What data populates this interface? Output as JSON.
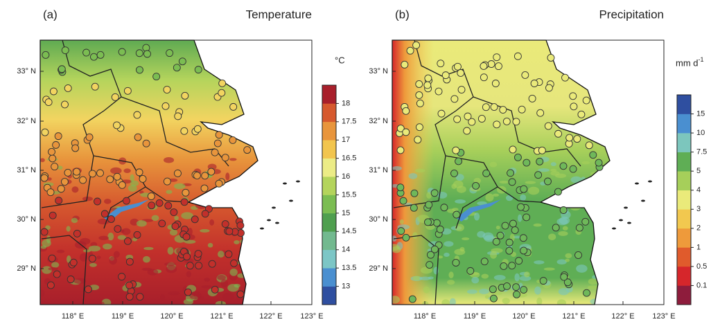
{
  "panels": [
    {
      "label": "(a)",
      "title": "Temperature",
      "unit": "°C",
      "lat_labels": [
        "29° N",
        "30° N",
        "31° N",
        "32° N",
        "33° N"
      ],
      "lon_labels": [
        "118° E",
        "119° E",
        "120° E",
        "121° E",
        "122° E",
        "123° E"
      ],
      "colorbar": {
        "labels": [
          "13",
          "13.5",
          "14",
          "14.5",
          "15",
          "15.5",
          "16",
          "16.5",
          "17",
          "17.5",
          "18"
        ],
        "colors": [
          "#2f4fa0",
          "#4a8fd0",
          "#7cc6c6",
          "#72b98f",
          "#4f9f4f",
          "#7bbd52",
          "#b4d45c",
          "#ecec86",
          "#f2c54e",
          "#e8953c",
          "#d6592e",
          "#a81f2b"
        ]
      }
    },
    {
      "label": "(b)",
      "title": "Precipitation",
      "unit": "mm d",
      "unit_sup": "-1",
      "lat_labels": [
        "29° N",
        "30° N",
        "31° N",
        "32° N",
        "33° N"
      ],
      "lon_labels": [
        "118° E",
        "119° E",
        "120° E",
        "121° E",
        "122° E",
        "123° E"
      ],
      "colorbar": {
        "labels": [
          "0.1",
          "0.5",
          "1",
          "2",
          "3",
          "4",
          "5",
          "7.5",
          "10",
          "15"
        ],
        "colors": [
          "#8e1c3c",
          "#d6262b",
          "#e05b2c",
          "#ee9a3b",
          "#f2c84f",
          "#eaea7a",
          "#a6cf5a",
          "#5fae55",
          "#7cc6bd",
          "#4a8fd0",
          "#2f4fa0"
        ]
      }
    }
  ]
}
